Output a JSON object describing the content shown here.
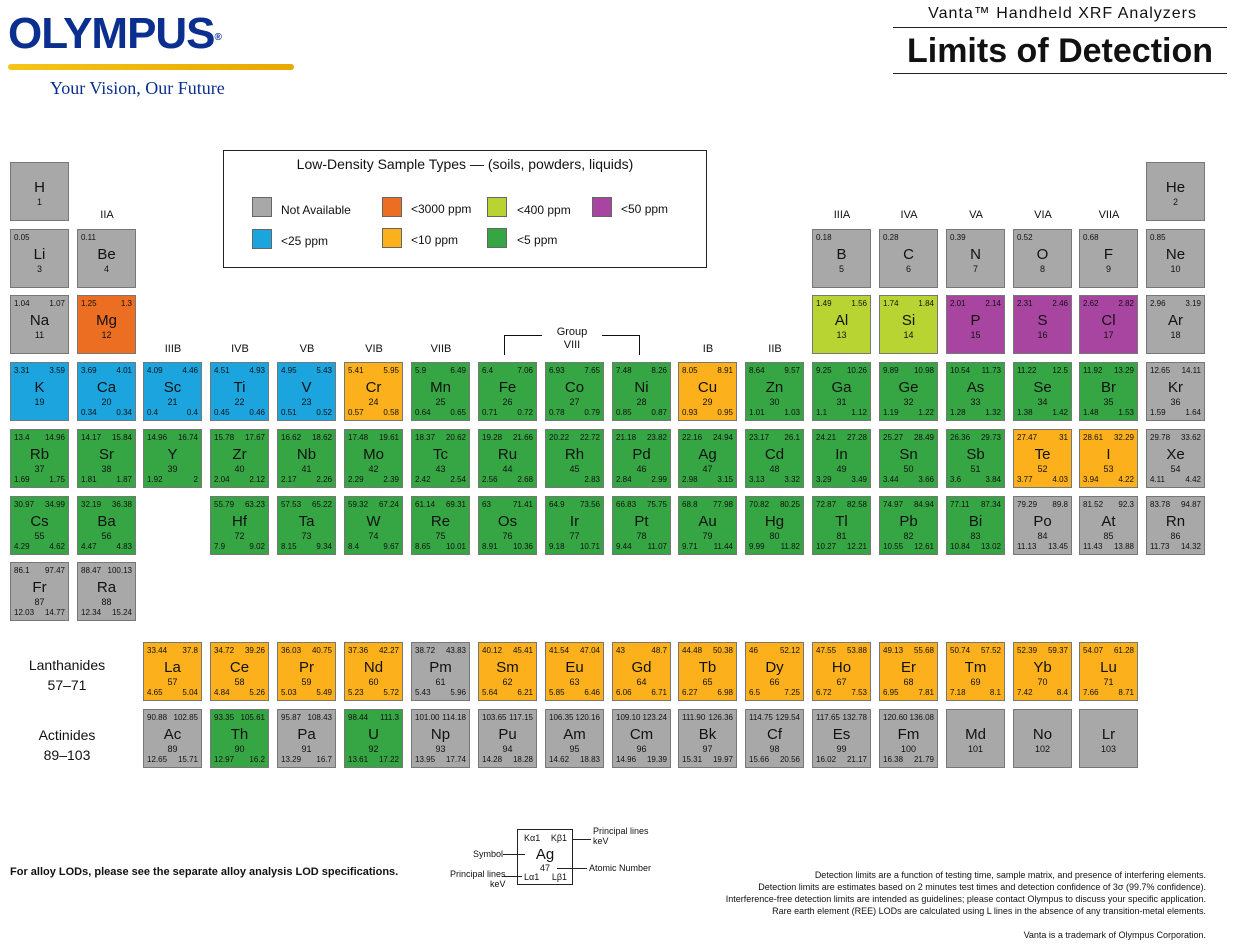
{
  "logo": {
    "brand": "OLYMPUS",
    "registered": "®",
    "tagline": "Your Vision, Our Future"
  },
  "header": {
    "product": "Vanta™ Handheld XRF Analyzers",
    "title": "Limits of Detection"
  },
  "legend": {
    "title": "Low-Density Sample Types — (soils, powders, liquids)",
    "items": [
      {
        "key": "na",
        "label": "Not Available",
        "color": "#a8a8a8"
      },
      {
        "key": "3000",
        "label": "<3000 ppm",
        "color": "#ec6e23"
      },
      {
        "key": "400",
        "label": "<400 ppm",
        "color": "#b7d433"
      },
      {
        "key": "50",
        "label": "<50 ppm",
        "color": "#a845a0"
      },
      {
        "key": "25",
        "label": "<25 ppm",
        "color": "#1ba4de"
      },
      {
        "key": "10",
        "label": "<10 ppm",
        "color": "#fbb01c"
      },
      {
        "key": "5",
        "label": "<5 ppm",
        "color": "#36a544"
      }
    ]
  },
  "group_labels": {
    "IIA": "IIA",
    "IIIB": "IIIB",
    "IVB": "IVB",
    "VB": "VB",
    "VIB": "VIB",
    "VIIB": "VIIB",
    "group": "Group",
    "VIII": "VIII",
    "IB": "IB",
    "IIB": "IIB",
    "IIIA": "IIIA",
    "IVA": "IVA",
    "VA": "VA",
    "VIA": "VIA",
    "VIIA": "VIIA"
  },
  "series": {
    "lanthanides": "Lanthanides",
    "lanthanides_range": "57–71",
    "actinides": "Actinides",
    "actinides_range": "89–103"
  },
  "elements": [
    {
      "sym": "H",
      "n": "1",
      "c": "na",
      "tl": "",
      "tr": "",
      "bl": "",
      "br": ""
    },
    {
      "sym": "He",
      "n": "2",
      "c": "na",
      "tl": "",
      "tr": "",
      "bl": "",
      "br": ""
    },
    {
      "sym": "Li",
      "n": "3",
      "c": "na",
      "tl": "0.05",
      "tr": "",
      "bl": "",
      "br": ""
    },
    {
      "sym": "Be",
      "n": "4",
      "c": "na",
      "tl": "0.11",
      "tr": "",
      "bl": "",
      "br": ""
    },
    {
      "sym": "B",
      "n": "5",
      "c": "na",
      "tl": "0.18",
      "tr": "",
      "bl": "",
      "br": ""
    },
    {
      "sym": "C",
      "n": "6",
      "c": "na",
      "tl": "0.28",
      "tr": "",
      "bl": "",
      "br": ""
    },
    {
      "sym": "N",
      "n": "7",
      "c": "na",
      "tl": "0.39",
      "tr": "",
      "bl": "",
      "br": ""
    },
    {
      "sym": "O",
      "n": "8",
      "c": "na",
      "tl": "0.52",
      "tr": "",
      "bl": "",
      "br": ""
    },
    {
      "sym": "F",
      "n": "9",
      "c": "na",
      "tl": "0.68",
      "tr": "",
      "bl": "",
      "br": ""
    },
    {
      "sym": "Ne",
      "n": "10",
      "c": "na",
      "tl": "0.85",
      "tr": "",
      "bl": "",
      "br": ""
    },
    {
      "sym": "Na",
      "n": "11",
      "c": "na",
      "tl": "1.04",
      "tr": "1.07",
      "bl": "",
      "br": ""
    },
    {
      "sym": "Mg",
      "n": "12",
      "c": "3000",
      "tl": "1.25",
      "tr": "1.3",
      "bl": "",
      "br": ""
    },
    {
      "sym": "Al",
      "n": "13",
      "c": "400",
      "tl": "1.49",
      "tr": "1.56",
      "bl": "",
      "br": ""
    },
    {
      "sym": "Si",
      "n": "14",
      "c": "400",
      "tl": "1.74",
      "tr": "1.84",
      "bl": "",
      "br": ""
    },
    {
      "sym": "P",
      "n": "15",
      "c": "50",
      "tl": "2.01",
      "tr": "2.14",
      "bl": "",
      "br": ""
    },
    {
      "sym": "S",
      "n": "16",
      "c": "50",
      "tl": "2.31",
      "tr": "2.46",
      "bl": "",
      "br": ""
    },
    {
      "sym": "Cl",
      "n": "17",
      "c": "50",
      "tl": "2.62",
      "tr": "2.82",
      "bl": "",
      "br": ""
    },
    {
      "sym": "Ar",
      "n": "18",
      "c": "na",
      "tl": "2.96",
      "tr": "3.19",
      "bl": "",
      "br": ""
    },
    {
      "sym": "K",
      "n": "19",
      "c": "25",
      "tl": "3.31",
      "tr": "3.59",
      "bl": "",
      "br": ""
    },
    {
      "sym": "Ca",
      "n": "20",
      "c": "25",
      "tl": "3.69",
      "tr": "4.01",
      "bl": "0.34",
      "br": "0.34"
    },
    {
      "sym": "Sc",
      "n": "21",
      "c": "25",
      "tl": "4.09",
      "tr": "4.46",
      "bl": "0.4",
      "br": "0.4"
    },
    {
      "sym": "Ti",
      "n": "22",
      "c": "25",
      "tl": "4.51",
      "tr": "4.93",
      "bl": "0.45",
      "br": "0.46"
    },
    {
      "sym": "V",
      "n": "23",
      "c": "25",
      "tl": "4.95",
      "tr": "5.43",
      "bl": "0.51",
      "br": "0.52"
    },
    {
      "sym": "Cr",
      "n": "24",
      "c": "10",
      "tl": "5.41",
      "tr": "5.95",
      "bl": "0.57",
      "br": "0.58"
    },
    {
      "sym": "Mn",
      "n": "25",
      "c": "5",
      "tl": "5.9",
      "tr": "6.49",
      "bl": "0.64",
      "br": "0.65"
    },
    {
      "sym": "Fe",
      "n": "26",
      "c": "5",
      "tl": "6.4",
      "tr": "7.06",
      "bl": "0.71",
      "br": "0.72"
    },
    {
      "sym": "Co",
      "n": "27",
      "c": "5",
      "tl": "6.93",
      "tr": "7.65",
      "bl": "0.78",
      "br": "0.79"
    },
    {
      "sym": "Ni",
      "n": "28",
      "c": "5",
      "tl": "7.48",
      "tr": "8.26",
      "bl": "0.85",
      "br": "0.87"
    },
    {
      "sym": "Cu",
      "n": "29",
      "c": "10",
      "tl": "8.05",
      "tr": "8.91",
      "bl": "0.93",
      "br": "0.95"
    },
    {
      "sym": "Zn",
      "n": "30",
      "c": "5",
      "tl": "8.64",
      "tr": "9.57",
      "bl": "1.01",
      "br": "1.03"
    },
    {
      "sym": "Ga",
      "n": "31",
      "c": "5",
      "tl": "9.25",
      "tr": "10.26",
      "bl": "1.1",
      "br": "1.12"
    },
    {
      "sym": "Ge",
      "n": "32",
      "c": "5",
      "tl": "9.89",
      "tr": "10.98",
      "bl": "1.19",
      "br": "1.22"
    },
    {
      "sym": "As",
      "n": "33",
      "c": "5",
      "tl": "10.54",
      "tr": "11.73",
      "bl": "1.28",
      "br": "1.32"
    },
    {
      "sym": "Se",
      "n": "34",
      "c": "5",
      "tl": "11.22",
      "tr": "12.5",
      "bl": "1.38",
      "br": "1.42"
    },
    {
      "sym": "Br",
      "n": "35",
      "c": "5",
      "tl": "11.92",
      "tr": "13.29",
      "bl": "1.48",
      "br": "1.53"
    },
    {
      "sym": "Kr",
      "n": "36",
      "c": "na",
      "tl": "12.65",
      "tr": "14.11",
      "bl": "1.59",
      "br": "1.64"
    },
    {
      "sym": "Rb",
      "n": "37",
      "c": "5",
      "tl": "13.4",
      "tr": "14.96",
      "bl": "1.69",
      "br": "1.75"
    },
    {
      "sym": "Sr",
      "n": "38",
      "c": "5",
      "tl": "14.17",
      "tr": "15.84",
      "bl": "1.81",
      "br": "1.87"
    },
    {
      "sym": "Y",
      "n": "39",
      "c": "5",
      "tl": "14.96",
      "tr": "16.74",
      "bl": "1.92",
      "br": "2"
    },
    {
      "sym": "Zr",
      "n": "40",
      "c": "5",
      "tl": "15.78",
      "tr": "17.67",
      "bl": "2.04",
      "br": "2.12"
    },
    {
      "sym": "Nb",
      "n": "41",
      "c": "5",
      "tl": "16.62",
      "tr": "18.62",
      "bl": "2.17",
      "br": "2.26"
    },
    {
      "sym": "Mo",
      "n": "42",
      "c": "5",
      "tl": "17.48",
      "tr": "19.61",
      "bl": "2.29",
      "br": "2.39"
    },
    {
      "sym": "Tc",
      "n": "43",
      "c": "5",
      "tl": "18.37",
      "tr": "20.62",
      "bl": "2.42",
      "br": "2.54"
    },
    {
      "sym": "Ru",
      "n": "44",
      "c": "5",
      "tl": "19.28",
      "tr": "21.66",
      "bl": "2.56",
      "br": "2.68"
    },
    {
      "sym": "Rh",
      "n": "45",
      "c": "5",
      "tl": "20.22",
      "tr": "22.72",
      "bl": "",
      "br": "2.83"
    },
    {
      "sym": "Pd",
      "n": "46",
      "c": "5",
      "tl": "21.18",
      "tr": "23.82",
      "bl": "2.84",
      "br": "2.99"
    },
    {
      "sym": "Ag",
      "n": "47",
      "c": "5",
      "tl": "22.16",
      "tr": "24.94",
      "bl": "2.98",
      "br": "3.15"
    },
    {
      "sym": "Cd",
      "n": "48",
      "c": "5",
      "tl": "23.17",
      "tr": "26.1",
      "bl": "3.13",
      "br": "3.32"
    },
    {
      "sym": "In",
      "n": "49",
      "c": "5",
      "tl": "24.21",
      "tr": "27.28",
      "bl": "3.29",
      "br": "3.49"
    },
    {
      "sym": "Sn",
      "n": "50",
      "c": "5",
      "tl": "25.27",
      "tr": "28.49",
      "bl": "3.44",
      "br": "3.66"
    },
    {
      "sym": "Sb",
      "n": "51",
      "c": "5",
      "tl": "26.36",
      "tr": "29.73",
      "bl": "3.6",
      "br": "3.84"
    },
    {
      "sym": "Te",
      "n": "52",
      "c": "10",
      "tl": "27.47",
      "tr": "31",
      "bl": "3.77",
      "br": "4.03"
    },
    {
      "sym": "I",
      "n": "53",
      "c": "10",
      "tl": "28.61",
      "tr": "32.29",
      "bl": "3.94",
      "br": "4.22"
    },
    {
      "sym": "Xe",
      "n": "54",
      "c": "na",
      "tl": "29.78",
      "tr": "33.62",
      "bl": "4.11",
      "br": "4.42"
    },
    {
      "sym": "Cs",
      "n": "55",
      "c": "5",
      "tl": "30.97",
      "tr": "34.99",
      "bl": "4.29",
      "br": "4.62"
    },
    {
      "sym": "Ba",
      "n": "56",
      "c": "5",
      "tl": "32.19",
      "tr": "36.38",
      "bl": "4.47",
      "br": "4.83"
    },
    {
      "sym": "Hf",
      "n": "72",
      "c": "5",
      "tl": "55.79",
      "tr": "63.23",
      "bl": "7.9",
      "br": "9.02"
    },
    {
      "sym": "Ta",
      "n": "73",
      "c": "5",
      "tl": "57.53",
      "tr": "65.22",
      "bl": "8.15",
      "br": "9.34"
    },
    {
      "sym": "W",
      "n": "74",
      "c": "5",
      "tl": "59.32",
      "tr": "67.24",
      "bl": "8.4",
      "br": "9.67"
    },
    {
      "sym": "Re",
      "n": "75",
      "c": "5",
      "tl": "61.14",
      "tr": "69.31",
      "bl": "8.65",
      "br": "10.01"
    },
    {
      "sym": "Os",
      "n": "76",
      "c": "5",
      "tl": "63",
      "tr": "71.41",
      "bl": "8.91",
      "br": "10.36"
    },
    {
      "sym": "Ir",
      "n": "77",
      "c": "5",
      "tl": "64.9",
      "tr": "73.56",
      "bl": "9.18",
      "br": "10.71"
    },
    {
      "sym": "Pt",
      "n": "78",
      "c": "5",
      "tl": "66.83",
      "tr": "75.75",
      "bl": "9.44",
      "br": "11.07"
    },
    {
      "sym": "Au",
      "n": "79",
      "c": "5",
      "tl": "68.8",
      "tr": "77.98",
      "bl": "9.71",
      "br": "11.44"
    },
    {
      "sym": "Hg",
      "n": "80",
      "c": "5",
      "tl": "70.82",
      "tr": "80.25",
      "bl": "9.99",
      "br": "11.82"
    },
    {
      "sym": "Tl",
      "n": "81",
      "c": "5",
      "tl": "72.87",
      "tr": "82.58",
      "bl": "10.27",
      "br": "12.21"
    },
    {
      "sym": "Pb",
      "n": "82",
      "c": "5",
      "tl": "74.97",
      "tr": "84.94",
      "bl": "10.55",
      "br": "12.61"
    },
    {
      "sym": "Bi",
      "n": "83",
      "c": "5",
      "tl": "77.11",
      "tr": "87.34",
      "bl": "10.84",
      "br": "13.02"
    },
    {
      "sym": "Po",
      "n": "84",
      "c": "na",
      "tl": "79.29",
      "tr": "89.8",
      "bl": "11.13",
      "br": "13.45"
    },
    {
      "sym": "At",
      "n": "85",
      "c": "na",
      "tl": "81.52",
      "tr": "92.3",
      "bl": "11.43",
      "br": "13.88"
    },
    {
      "sym": "Rn",
      "n": "86",
      "c": "na",
      "tl": "83.78",
      "tr": "94.87",
      "bl": "11.73",
      "br": "14.32"
    },
    {
      "sym": "Fr",
      "n": "87",
      "c": "na",
      "tl": "86.1",
      "tr": "97.47",
      "bl": "12.03",
      "br": "14.77"
    },
    {
      "sym": "Ra",
      "n": "88",
      "c": "na",
      "tl": "88.47",
      "tr": "100.13",
      "bl": "12.34",
      "br": "15.24"
    },
    {
      "sym": "La",
      "n": "57",
      "c": "10",
      "tl": "33.44",
      "tr": "37.8",
      "bl": "4.65",
      "br": "5.04"
    },
    {
      "sym": "Ce",
      "n": "58",
      "c": "10",
      "tl": "34.72",
      "tr": "39.26",
      "bl": "4.84",
      "br": "5.26"
    },
    {
      "sym": "Pr",
      "n": "59",
      "c": "10",
      "tl": "36.03",
      "tr": "40.75",
      "bl": "5.03",
      "br": "5.49"
    },
    {
      "sym": "Nd",
      "n": "60",
      "c": "10",
      "tl": "37.36",
      "tr": "42.27",
      "bl": "5.23",
      "br": "5.72"
    },
    {
      "sym": "Pm",
      "n": "61",
      "c": "na",
      "tl": "38.72",
      "tr": "43.83",
      "bl": "5.43",
      "br": "5.96"
    },
    {
      "sym": "Sm",
      "n": "62",
      "c": "10",
      "tl": "40.12",
      "tr": "45.41",
      "bl": "5.64",
      "br": "6.21"
    },
    {
      "sym": "Eu",
      "n": "63",
      "c": "10",
      "tl": "41.54",
      "tr": "47.04",
      "bl": "5.85",
      "br": "6.46"
    },
    {
      "sym": "Gd",
      "n": "64",
      "c": "10",
      "tl": "43",
      "tr": "48.7",
      "bl": "6.06",
      "br": "6.71"
    },
    {
      "sym": "Tb",
      "n": "65",
      "c": "10",
      "tl": "44.48",
      "tr": "50.38",
      "bl": "6.27",
      "br": "6.98"
    },
    {
      "sym": "Dy",
      "n": "66",
      "c": "10",
      "tl": "46",
      "tr": "52.12",
      "bl": "6.5",
      "br": "7.25"
    },
    {
      "sym": "Ho",
      "n": "67",
      "c": "10",
      "tl": "47.55",
      "tr": "53.88",
      "bl": "6.72",
      "br": "7.53"
    },
    {
      "sym": "Er",
      "n": "68",
      "c": "10",
      "tl": "49.13",
      "tr": "55.68",
      "bl": "6.95",
      "br": "7.81"
    },
    {
      "sym": "Tm",
      "n": "69",
      "c": "10",
      "tl": "50.74",
      "tr": "57.52",
      "bl": "7.18",
      "br": "8.1"
    },
    {
      "sym": "Yb",
      "n": "70",
      "c": "10",
      "tl": "52.39",
      "tr": "59.37",
      "bl": "7.42",
      "br": "8.4"
    },
    {
      "sym": "Lu",
      "n": "71",
      "c": "10",
      "tl": "54.07",
      "tr": "61.28",
      "bl": "7.66",
      "br": "8.71"
    },
    {
      "sym": "Ac",
      "n": "89",
      "c": "na",
      "tl": "90.88",
      "tr": "102.85",
      "bl": "12.65",
      "br": "15.71"
    },
    {
      "sym": "Th",
      "n": "90",
      "c": "5",
      "tl": "93.35",
      "tr": "105.61",
      "bl": "12.97",
      "br": "16.2"
    },
    {
      "sym": "Pa",
      "n": "91",
      "c": "na",
      "tl": "95.87",
      "tr": "108.43",
      "bl": "13.29",
      "br": "16.7"
    },
    {
      "sym": "U",
      "n": "92",
      "c": "5",
      "tl": "98.44",
      "tr": "111.3",
      "bl": "13.61",
      "br": "17.22"
    },
    {
      "sym": "Np",
      "n": "93",
      "c": "na",
      "tl": "101.00",
      "tr": "114.18",
      "bl": "13.95",
      "br": "17.74"
    },
    {
      "sym": "Pu",
      "n": "94",
      "c": "na",
      "tl": "103.65",
      "tr": "117.15",
      "bl": "14.28",
      "br": "18.28"
    },
    {
      "sym": "Am",
      "n": "95",
      "c": "na",
      "tl": "106.35",
      "tr": "120.16",
      "bl": "14.62",
      "br": "18.83"
    },
    {
      "sym": "Cm",
      "n": "96",
      "c": "na",
      "tl": "109.10",
      "tr": "123.24",
      "bl": "14.96",
      "br": "19.39"
    },
    {
      "sym": "Bk",
      "n": "97",
      "c": "na",
      "tl": "111.90",
      "tr": "126.36",
      "bl": "15.31",
      "br": "19.97"
    },
    {
      "sym": "Cf",
      "n": "98",
      "c": "na",
      "tl": "114.75",
      "tr": "129.54",
      "bl": "15.66",
      "br": "20.56"
    },
    {
      "sym": "Es",
      "n": "99",
      "c": "na",
      "tl": "117.65",
      "tr": "132.78",
      "bl": "16.02",
      "br": "21.17"
    },
    {
      "sym": "Fm",
      "n": "100",
      "c": "na",
      "tl": "120.60",
      "tr": "136.08",
      "bl": "16.38",
      "br": "21.79"
    },
    {
      "sym": "Md",
      "n": "101",
      "c": "na",
      "tl": "",
      "tr": "",
      "bl": "",
      "br": ""
    },
    {
      "sym": "No",
      "n": "102",
      "c": "na",
      "tl": "",
      "tr": "",
      "bl": "",
      "br": ""
    },
    {
      "sym": "Lr",
      "n": "103",
      "c": "na",
      "tl": "",
      "tr": "",
      "bl": "",
      "br": ""
    }
  ],
  "key": {
    "ka1": "Kα1",
    "kb1": "Kβ1",
    "la1": "Lα1",
    "lb1": "Lβ1",
    "symbol": "Ag",
    "number": "47",
    "symbol_label": "Symbol",
    "atomic_label": "Atomic Number",
    "principal_top": "Principal lines",
    "kev_top": "keV",
    "principal_left": "Principal lines",
    "kev_left": "keV"
  },
  "footer": {
    "alloy_note": "For alloy LODs, please see the separate alloy analysis LOD specifications.",
    "notes": [
      "Detection limits are a function of testing time, sample matrix, and presence of interfering elements.",
      "Detection limits are estimates based on 2 minutes test times and detection confidence of 3σ (99.7% confidence).",
      "Interference-free detection limits are intended as guidelines; please contact Olympus to discuss your specific application.",
      "Rare earth element (REE) LODs are calculated using L lines in the absence of any transition-metal elements."
    ],
    "trademark": "Vanta is a trademark of Olympus Corporation."
  }
}
